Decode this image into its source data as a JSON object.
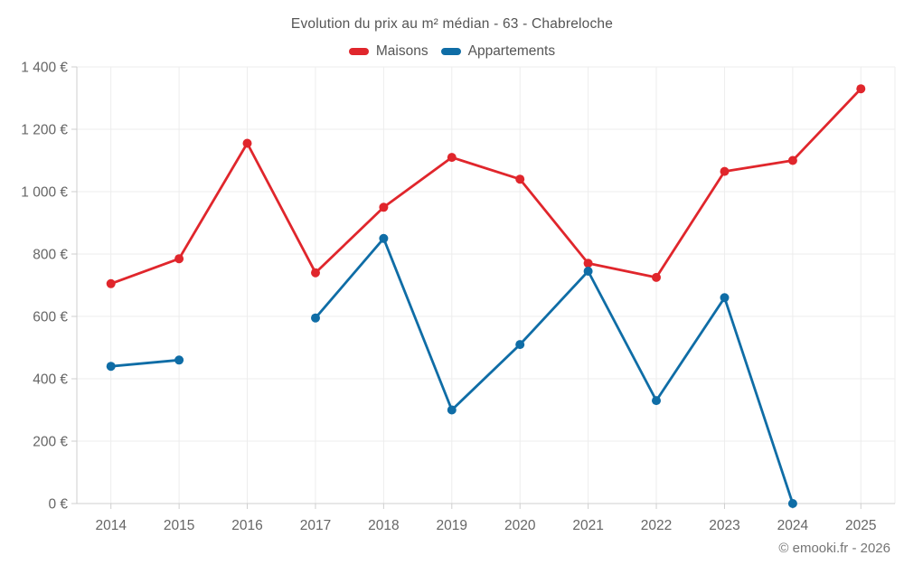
{
  "header": {
    "title": "Evolution du prix au m² médian - 63 - Chabreloche"
  },
  "legend": {
    "items": [
      {
        "label": "Maisons",
        "color": "#e0262c"
      },
      {
        "label": "Appartements",
        "color": "#0f6da6"
      }
    ]
  },
  "footer": {
    "credit": "© emooki.fr - 2026"
  },
  "chart_data": {
    "type": "line",
    "title": "Evolution du prix au m² médian - 63 - Chabreloche",
    "categories": [
      "2014",
      "2015",
      "2016",
      "2017",
      "2018",
      "2019",
      "2020",
      "2021",
      "2022",
      "2023",
      "2024",
      "2025"
    ],
    "series": [
      {
        "name": "Maisons",
        "color": "#e0262c",
        "values": [
          705,
          785,
          1155,
          740,
          950,
          1110,
          1040,
          770,
          725,
          1065,
          1100,
          1330
        ]
      },
      {
        "name": "Appartements",
        "color": "#0f6da6",
        "values": [
          440,
          460,
          null,
          595,
          850,
          300,
          510,
          745,
          330,
          660,
          0,
          null
        ]
      }
    ],
    "xlabel": "",
    "ylabel": "",
    "ylim": [
      0,
      1400
    ],
    "ytick_step": 200,
    "ytick_labels": [
      "0 €",
      "200 €",
      "400 €",
      "600 €",
      "800 €",
      "1 000 €",
      "1 200 €",
      "1 400 €"
    ],
    "currency_suffix": " €",
    "grid": true,
    "legend_position": "top",
    "marker": "circle",
    "missing_points": {
      "Appartements": [
        "2016",
        "2025"
      ]
    }
  }
}
